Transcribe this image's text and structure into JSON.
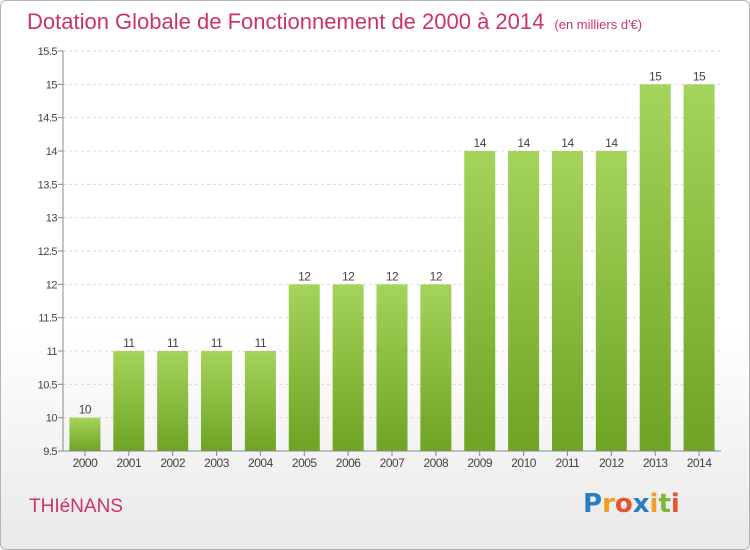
{
  "header": {
    "title": "Dotation Globale de Fonctionnement de 2000 à 2014",
    "subtitle": "(en milliers d'€)"
  },
  "commune": "THIéNANS",
  "logo": {
    "text": "Proxiti",
    "letters": [
      "P",
      "r",
      "o",
      "x",
      "i",
      "t",
      "i"
    ],
    "colors": [
      "#2a7fc1",
      "#f0a020",
      "#e8522e",
      "#2a7fc1",
      "#f0a020",
      "#7bb83a",
      "#e8522e"
    ]
  },
  "colors": {
    "bar_light": "#a4d45a",
    "bar_dark": "#6fa324",
    "grid": "#d9d9d9",
    "text": "#444444"
  },
  "chart_data": {
    "type": "bar",
    "title": "Dotation Globale de Fonctionnement de 2000 à 2014",
    "subtitle": "(en milliers d'€)",
    "categories": [
      "2000",
      "2001",
      "2002",
      "2003",
      "2004",
      "2005",
      "2006",
      "2007",
      "2008",
      "2009",
      "2010",
      "2011",
      "2012",
      "2013",
      "2014"
    ],
    "values": [
      10,
      11,
      11,
      11,
      11,
      12,
      12,
      12,
      12,
      14,
      14,
      14,
      14,
      15,
      15
    ],
    "value_labels": [
      "10",
      "11",
      "11",
      "11",
      "11",
      "12",
      "12",
      "12",
      "12",
      "14",
      "14",
      "14",
      "14",
      "15",
      "15"
    ],
    "ylim": [
      9.5,
      15.5
    ],
    "yticks": [
      "9.5",
      "10",
      "10.5",
      "11",
      "11.5",
      "12",
      "12.5",
      "13",
      "13.5",
      "14",
      "14.5",
      "15",
      "15.5"
    ],
    "grid": true
  }
}
